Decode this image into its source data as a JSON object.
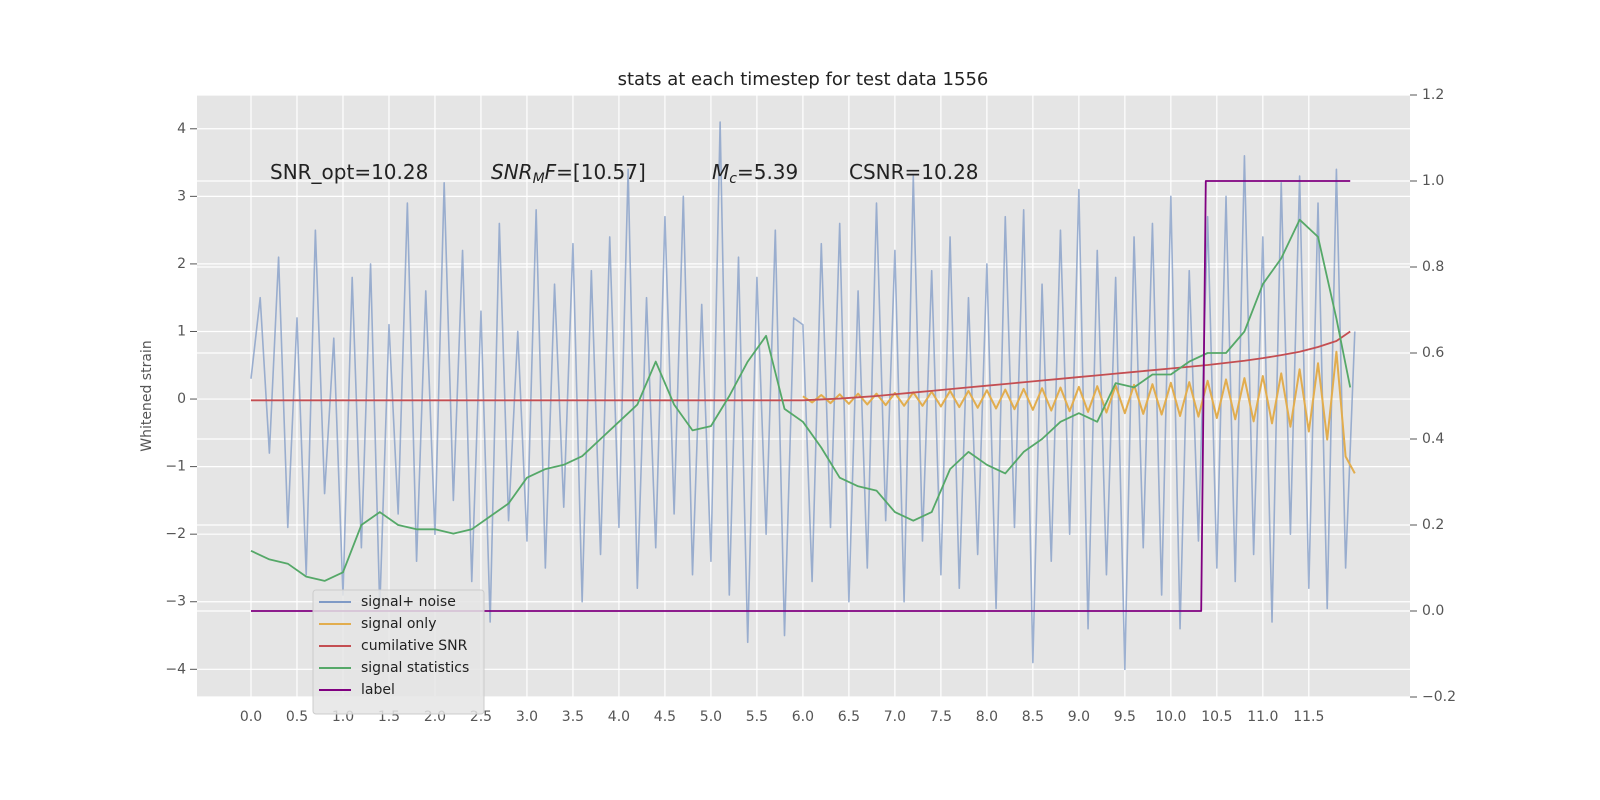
{
  "chart_data": {
    "type": "line",
    "title": "stats at each timestep for test data 1556",
    "y_label": "Whitened strain",
    "grid": true,
    "legend": "lower left",
    "xlim": [
      -0.587,
      12.6
    ],
    "ylim": [
      -4.41,
      4.5
    ],
    "y2lim": [
      -0.2,
      1.2
    ],
    "xticks": [
      {
        "value": 0,
        "label": "0.0"
      },
      0.5,
      {
        "value": 1,
        "label": "1.0"
      },
      1.5,
      {
        "value": 2,
        "label": "2.0"
      },
      2.5,
      {
        "value": 3,
        "label": "3.0"
      },
      3.5,
      {
        "value": 4,
        "label": "4.0"
      },
      4.5,
      {
        "value": 5,
        "label": "5.0"
      },
      5.5,
      {
        "value": 6,
        "label": "6.0"
      },
      6.5,
      {
        "value": 7,
        "label": "7.0"
      },
      7.5,
      {
        "value": 8,
        "label": "8.0"
      },
      8.5,
      {
        "value": 9,
        "label": "9.0"
      },
      9.5,
      {
        "value": 10,
        "label": "10.0"
      },
      10.5,
      {
        "value": 11,
        "label": "11.0"
      },
      11.5
    ],
    "yticks": [
      {
        "value": -4,
        "label": "−4"
      },
      {
        "value": -3,
        "label": "−3"
      },
      {
        "value": -2,
        "label": "−2"
      },
      {
        "value": -1,
        "label": "−1"
      },
      0,
      1,
      2,
      3,
      4
    ],
    "y2ticks": [
      {
        "value": -0.2,
        "label": "−0.2"
      },
      {
        "value": 0,
        "label": "0.0"
      },
      0.2,
      0.4,
      0.6,
      0.8,
      {
        "value": 1,
        "label": "1.0"
      },
      1.2
    ],
    "annotations": [
      [
        {
          "text": "SNR_opt=10.28"
        }
      ],
      [
        {
          "text": "SNR",
          "style": "italic"
        },
        {
          "text": "M",
          "style": "italic subscript"
        },
        {
          "text": "F",
          "style": "italic"
        },
        {
          "text": "=[10.57]"
        }
      ],
      [
        {
          "text": "M",
          "style": "italic"
        },
        {
          "text": "c",
          "style": "italic subscript"
        },
        {
          "text": "=5.39"
        }
      ],
      [
        {
          "text": "CSNR=10.28"
        }
      ]
    ],
    "series": [
      {
        "name": "signal+ noise",
        "color": "#7f9ac6",
        "axis": "y",
        "x": [
          0,
          0.1,
          0.2,
          0.3,
          0.4,
          0.5,
          0.6,
          0.7,
          0.8,
          0.9,
          1,
          1.1,
          1.2,
          1.3,
          1.4,
          1.5,
          1.6,
          1.7,
          1.8,
          1.9,
          2,
          2.1,
          2.2,
          2.3,
          2.4,
          2.5,
          2.6,
          2.7,
          2.8,
          2.9,
          3,
          3.1,
          3.2,
          3.3,
          3.4,
          3.5,
          3.6,
          3.7,
          3.8,
          3.9,
          4,
          4.1,
          4.2,
          4.3,
          4.4,
          4.5,
          4.6,
          4.7,
          4.8,
          4.9,
          5,
          5.1,
          5.2,
          5.3,
          5.4,
          5.5,
          5.6,
          5.7,
          5.8,
          5.9,
          6,
          6.1,
          6.2,
          6.3,
          6.4,
          6.5,
          6.6,
          6.7,
          6.8,
          6.9,
          7,
          7.1,
          7.2,
          7.3,
          7.4,
          7.5,
          7.6,
          7.7,
          7.8,
          7.9,
          8,
          8.1,
          8.2,
          8.3,
          8.4,
          8.5,
          8.6,
          8.7,
          8.8,
          8.9,
          9,
          9.1,
          9.2,
          9.3,
          9.4,
          9.5,
          9.6,
          9.7,
          9.8,
          9.9,
          10,
          10.1,
          10.2,
          10.3,
          10.4,
          10.5,
          10.6,
          10.7,
          10.8,
          10.9,
          11,
          11.1,
          11.2,
          11.3,
          11.4,
          11.5,
          11.6,
          11.7,
          11.8,
          11.9,
          12
        ],
        "values": [
          0.3,
          1.5,
          -0.8,
          2.1,
          -1.9,
          1.2,
          -2.6,
          2.5,
          -1.4,
          0.9,
          -2.9,
          1.8,
          -2.2,
          2.0,
          -3.1,
          1.1,
          -1.7,
          2.9,
          -2.4,
          1.6,
          -2.0,
          3.2,
          -1.5,
          2.2,
          -2.7,
          1.3,
          -3.3,
          2.6,
          -1.8,
          1.0,
          -2.1,
          2.8,
          -2.5,
          1.7,
          -1.6,
          2.3,
          -3.0,
          1.9,
          -2.3,
          2.4,
          -1.9,
          3.4,
          -2.8,
          1.5,
          -2.2,
          2.7,
          -1.7,
          3.0,
          -2.6,
          1.4,
          -2.4,
          4.1,
          -2.9,
          2.1,
          -3.6,
          1.8,
          -2.0,
          2.5,
          -3.5,
          1.2,
          1.1,
          -2.7,
          2.3,
          -1.9,
          2.6,
          -3.0,
          1.6,
          -2.5,
          2.9,
          -1.8,
          2.2,
          -3.0,
          3.3,
          -2.1,
          1.9,
          -2.6,
          2.4,
          -2.8,
          1.5,
          -2.3,
          2.0,
          -3.1,
          2.7,
          -1.9,
          2.8,
          -3.9,
          1.7,
          -2.4,
          2.5,
          -2.0,
          3.1,
          -3.4,
          2.2,
          -2.6,
          1.8,
          -4.0,
          2.4,
          -2.2,
          2.6,
          -2.9,
          3.0,
          -3.4,
          1.9,
          -2.1,
          2.7,
          -2.5,
          3.0,
          -2.7,
          3.6,
          -2.3,
          2.4,
          -3.3,
          3.2,
          -2.0,
          3.3,
          -2.8,
          2.9,
          -3.1,
          3.4,
          -2.5,
          1.0
        ]
      },
      {
        "name": "signal only",
        "color": "#e2ad4e",
        "axis": "y",
        "x": [
          6,
          6.1,
          6.2,
          6.3,
          6.4,
          6.5,
          6.6,
          6.7,
          6.8,
          6.9,
          7,
          7.1,
          7.2,
          7.3,
          7.4,
          7.5,
          7.6,
          7.7,
          7.8,
          7.9,
          8,
          8.1,
          8.2,
          8.3,
          8.4,
          8.5,
          8.6,
          8.7,
          8.8,
          8.9,
          9,
          9.1,
          9.2,
          9.3,
          9.4,
          9.5,
          9.6,
          9.7,
          9.8,
          9.9,
          10,
          10.1,
          10.2,
          10.3,
          10.4,
          10.5,
          10.6,
          10.7,
          10.8,
          10.9,
          11,
          11.1,
          11.2,
          11.3,
          11.4,
          11.5,
          11.6,
          11.7,
          11.8,
          11.9,
          12
        ],
        "values": [
          0.04,
          -0.05,
          0.06,
          -0.06,
          0.07,
          -0.07,
          0.08,
          -0.08,
          0.08,
          -0.09,
          0.09,
          -0.1,
          0.1,
          -0.1,
          0.11,
          -0.11,
          0.12,
          -0.12,
          0.12,
          -0.13,
          0.13,
          -0.14,
          0.14,
          -0.15,
          0.15,
          -0.16,
          0.16,
          -0.17,
          0.17,
          -0.18,
          0.18,
          -0.19,
          0.19,
          -0.2,
          0.2,
          -0.21,
          0.21,
          -0.22,
          0.22,
          -0.23,
          0.24,
          -0.25,
          0.25,
          -0.26,
          0.27,
          -0.28,
          0.29,
          -0.3,
          0.31,
          -0.33,
          0.34,
          -0.36,
          0.38,
          -0.41,
          0.44,
          -0.48,
          0.53,
          -0.6,
          0.7,
          -0.85,
          -1.1
        ]
      },
      {
        "name": "cumilative SNR",
        "color": "#c44e52",
        "axis": "y2",
        "x": [
          0,
          0.2,
          0.4,
          0.6,
          0.8,
          1,
          1.2,
          1.4,
          1.6,
          1.8,
          2,
          2.2,
          2.4,
          2.6,
          2.8,
          3,
          3.2,
          3.4,
          3.6,
          3.8,
          4,
          4.2,
          4.4,
          4.6,
          4.8,
          5,
          5.2,
          5.4,
          5.6,
          5.8,
          6,
          6.2,
          6.4,
          6.6,
          6.8,
          7,
          7.2,
          7.4,
          7.6,
          7.8,
          8,
          8.2,
          8.4,
          8.6,
          8.8,
          9,
          9.2,
          9.4,
          9.6,
          9.8,
          10,
          10.2,
          10.4,
          10.6,
          10.8,
          11,
          11.2,
          11.4,
          11.6,
          11.8,
          11.95
        ],
        "values": [
          0.49,
          0.49,
          0.49,
          0.49,
          0.49,
          0.49,
          0.49,
          0.49,
          0.49,
          0.49,
          0.49,
          0.49,
          0.49,
          0.49,
          0.49,
          0.49,
          0.49,
          0.49,
          0.49,
          0.49,
          0.49,
          0.49,
          0.49,
          0.49,
          0.49,
          0.49,
          0.49,
          0.49,
          0.49,
          0.49,
          0.49,
          0.492,
          0.494,
          0.497,
          0.5,
          0.504,
          0.508,
          0.512,
          0.516,
          0.52,
          0.524,
          0.528,
          0.532,
          0.536,
          0.54,
          0.544,
          0.548,
          0.552,
          0.556,
          0.56,
          0.564,
          0.568,
          0.572,
          0.577,
          0.582,
          0.588,
          0.595,
          0.603,
          0.614,
          0.628,
          0.65
        ]
      },
      {
        "name": "signal statistics",
        "color": "#55a868",
        "axis": "y2",
        "x": [
          0,
          0.2,
          0.4,
          0.6,
          0.8,
          1,
          1.2,
          1.4,
          1.6,
          1.8,
          2,
          2.2,
          2.4,
          2.6,
          2.8,
          3,
          3.2,
          3.4,
          3.6,
          3.8,
          4,
          4.2,
          4.4,
          4.6,
          4.8,
          5,
          5.2,
          5.4,
          5.6,
          5.8,
          6,
          6.2,
          6.4,
          6.6,
          6.8,
          7,
          7.2,
          7.4,
          7.6,
          7.8,
          8,
          8.2,
          8.4,
          8.6,
          8.8,
          9,
          9.2,
          9.4,
          9.6,
          9.8,
          10,
          10.2,
          10.4,
          10.6,
          10.8,
          11,
          11.2,
          11.4,
          11.6,
          11.8,
          11.95
        ],
        "values": [
          0.14,
          0.12,
          0.11,
          0.08,
          0.07,
          0.09,
          0.2,
          0.23,
          0.2,
          0.19,
          0.19,
          0.18,
          0.19,
          0.22,
          0.25,
          0.31,
          0.33,
          0.34,
          0.36,
          0.4,
          0.44,
          0.48,
          0.58,
          0.48,
          0.42,
          0.43,
          0.5,
          0.58,
          0.64,
          0.47,
          0.44,
          0.38,
          0.31,
          0.29,
          0.28,
          0.23,
          0.21,
          0.23,
          0.33,
          0.37,
          0.34,
          0.32,
          0.37,
          0.4,
          0.44,
          0.46,
          0.44,
          0.53,
          0.52,
          0.55,
          0.55,
          0.58,
          0.6,
          0.6,
          0.65,
          0.76,
          0.82,
          0.91,
          0.87,
          0.68,
          0.52
        ]
      },
      {
        "name": "label",
        "color": "#800080",
        "axis": "y2",
        "x": [
          0,
          10.33,
          10.38,
          11.95
        ],
        "values": [
          0,
          0,
          1,
          1
        ]
      }
    ]
  }
}
